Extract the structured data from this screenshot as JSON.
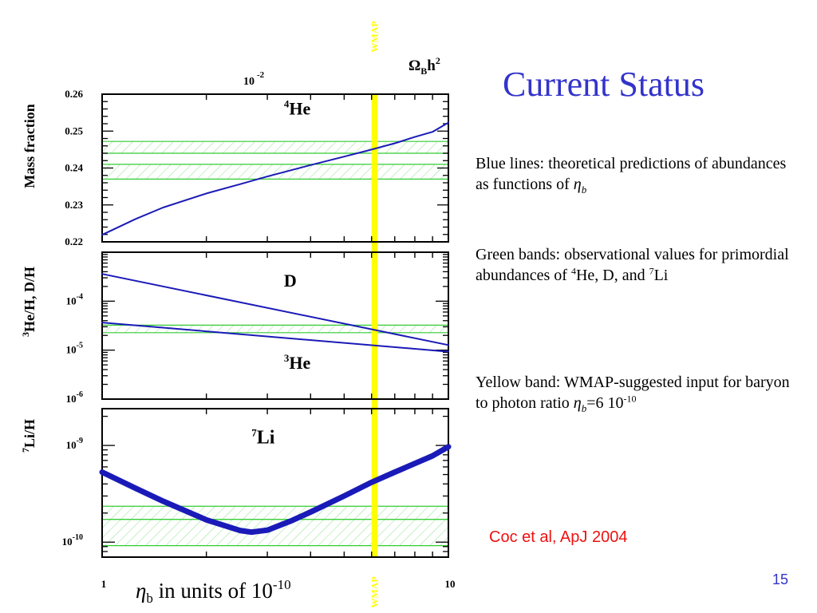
{
  "slide": {
    "title": "Current Status",
    "blue_lines_text": "Blue lines: theoretical predictions of abundances as functions of ",
    "eta_symbol": "η",
    "eta_sub": "b",
    "green_bands_text": "Green bands: observational values for primordial abundances of ",
    "green_he_mass": "4",
    "green_he_text": "He, D, and ",
    "green_li_mass": "7",
    "green_li_text": "Li",
    "yellow_band_text": "Yellow band: WMAP-suggested input for baryon to photon ratio ",
    "yellow_value": "=6 10",
    "yellow_exp": "-10",
    "citation": "Coc et al, ApJ 2004",
    "page_number": "15"
  },
  "colors": {
    "title": "#3333cc",
    "theory_line": "#1a1ab8",
    "obs_band": "#33cc33",
    "wmap_band": "#ffff00",
    "citation": "#ee1111"
  },
  "chart_data": {
    "type": "line",
    "x_scale": "log",
    "xlim": [
      1,
      10
    ],
    "x_ticklabels": [
      "1",
      "10"
    ],
    "xlabel_prefix": "η",
    "xlabel_sub": "b",
    "xlabel_text": " in units of 10",
    "xlabel_exp": "-10",
    "top_axis": {
      "label_base": "10",
      "label_exp": "-2",
      "value": 1.0,
      "omega_label": "Ω",
      "omega_sub": "B",
      "omega_rest": "h",
      "omega_exp": "2"
    },
    "wmap": {
      "label": "WMAP",
      "eta_range": [
        6.0,
        6.25
      ]
    },
    "panels": [
      {
        "id": "he4",
        "ylabel": "Mass fraction",
        "y_scale": "linear",
        "ylim": [
          0.22,
          0.26
        ],
        "yticks": [
          {
            "value": 0.26,
            "label": "0.26"
          },
          {
            "value": 0.25,
            "label": "0.25"
          },
          {
            "value": 0.24,
            "label": "0.24"
          },
          {
            "value": 0.23,
            "label": "0.23"
          },
          {
            "value": 0.22,
            "label": "0.22"
          }
        ],
        "series": [
          {
            "mass": "4",
            "element": "He",
            "label_pos": [
              3.35,
              0.2545
            ],
            "x": [
              1,
              1.25,
              1.5,
              2,
              2.5,
              3,
              4,
              5,
              6,
              7,
              8,
              9,
              10
            ],
            "y": [
              0.2219,
              0.2262,
              0.2293,
              0.2331,
              0.2356,
              0.2377,
              0.2408,
              0.2431,
              0.245,
              0.2467,
              0.2484,
              0.2498,
              0.2523
            ],
            "width": 2
          }
        ],
        "bands": [
          {
            "lo": 0.237,
            "hi": 0.241
          },
          {
            "lo": 0.244,
            "hi": 0.2472
          }
        ]
      },
      {
        "id": "dhe3",
        "ylabel_mass": "3",
        "ylabel_text": "He/H, D/H",
        "y_scale": "log",
        "ylim": [
          1e-06,
          0.001
        ],
        "yticks": [
          {
            "value": 0.0001,
            "base": "10",
            "exp": "-4"
          },
          {
            "value": 1e-05,
            "base": "10",
            "exp": "-5"
          },
          {
            "value": 1e-06,
            "base": "10",
            "exp": "-6"
          }
        ],
        "series": [
          {
            "element": "D",
            "mass": "",
            "label_pos": [
              3.35,
              0.0002
            ],
            "x": [
              1,
              10
            ],
            "y": [
              0.00036,
              1.27e-05
            ],
            "width": 2
          },
          {
            "mass": "3",
            "element": "He",
            "label_pos": [
              3.35,
              4.2e-06
            ],
            "x": [
              1,
              10
            ],
            "y": [
              3.66e-05,
              9.3e-06
            ],
            "width": 2
          }
        ],
        "bands": [
          {
            "lo": 2.27e-05,
            "hi": 3.24e-05
          }
        ]
      },
      {
        "id": "li7",
        "ylabel_mass": "7",
        "ylabel_text": "Li/H",
        "y_scale": "log",
        "ylim": [
          7e-11,
          2.4e-09
        ],
        "yticks": [
          {
            "value": 1e-09,
            "base": "10",
            "exp": "-9"
          },
          {
            "value": 1e-10,
            "base": "10",
            "exp": "-10"
          }
        ],
        "series": [
          {
            "mass": "7",
            "element": "Li",
            "label_pos": [
              2.7,
              1.05e-09
            ],
            "x": [
              1,
              1.25,
              1.5,
              2,
              2.5,
              2.7,
              3,
              3.5,
              4,
              5,
              6,
              7,
              8,
              9,
              10
            ],
            "y": [
              5.3e-10,
              3.6e-10,
              2.65e-10,
              1.7e-10,
              1.32e-10,
              1.27e-10,
              1.33e-10,
              1.65e-10,
              2.05e-10,
              3e-10,
              4.15e-10,
              5.3e-10,
              6.5e-10,
              7.8e-10,
              9.7e-10
            ],
            "width": 7
          }
        ],
        "bands": [
          {
            "lo": 9.2e-11,
            "hi": 1.72e-10
          },
          {
            "lo": 1.72e-10,
            "hi": 2.35e-10
          }
        ]
      }
    ]
  }
}
